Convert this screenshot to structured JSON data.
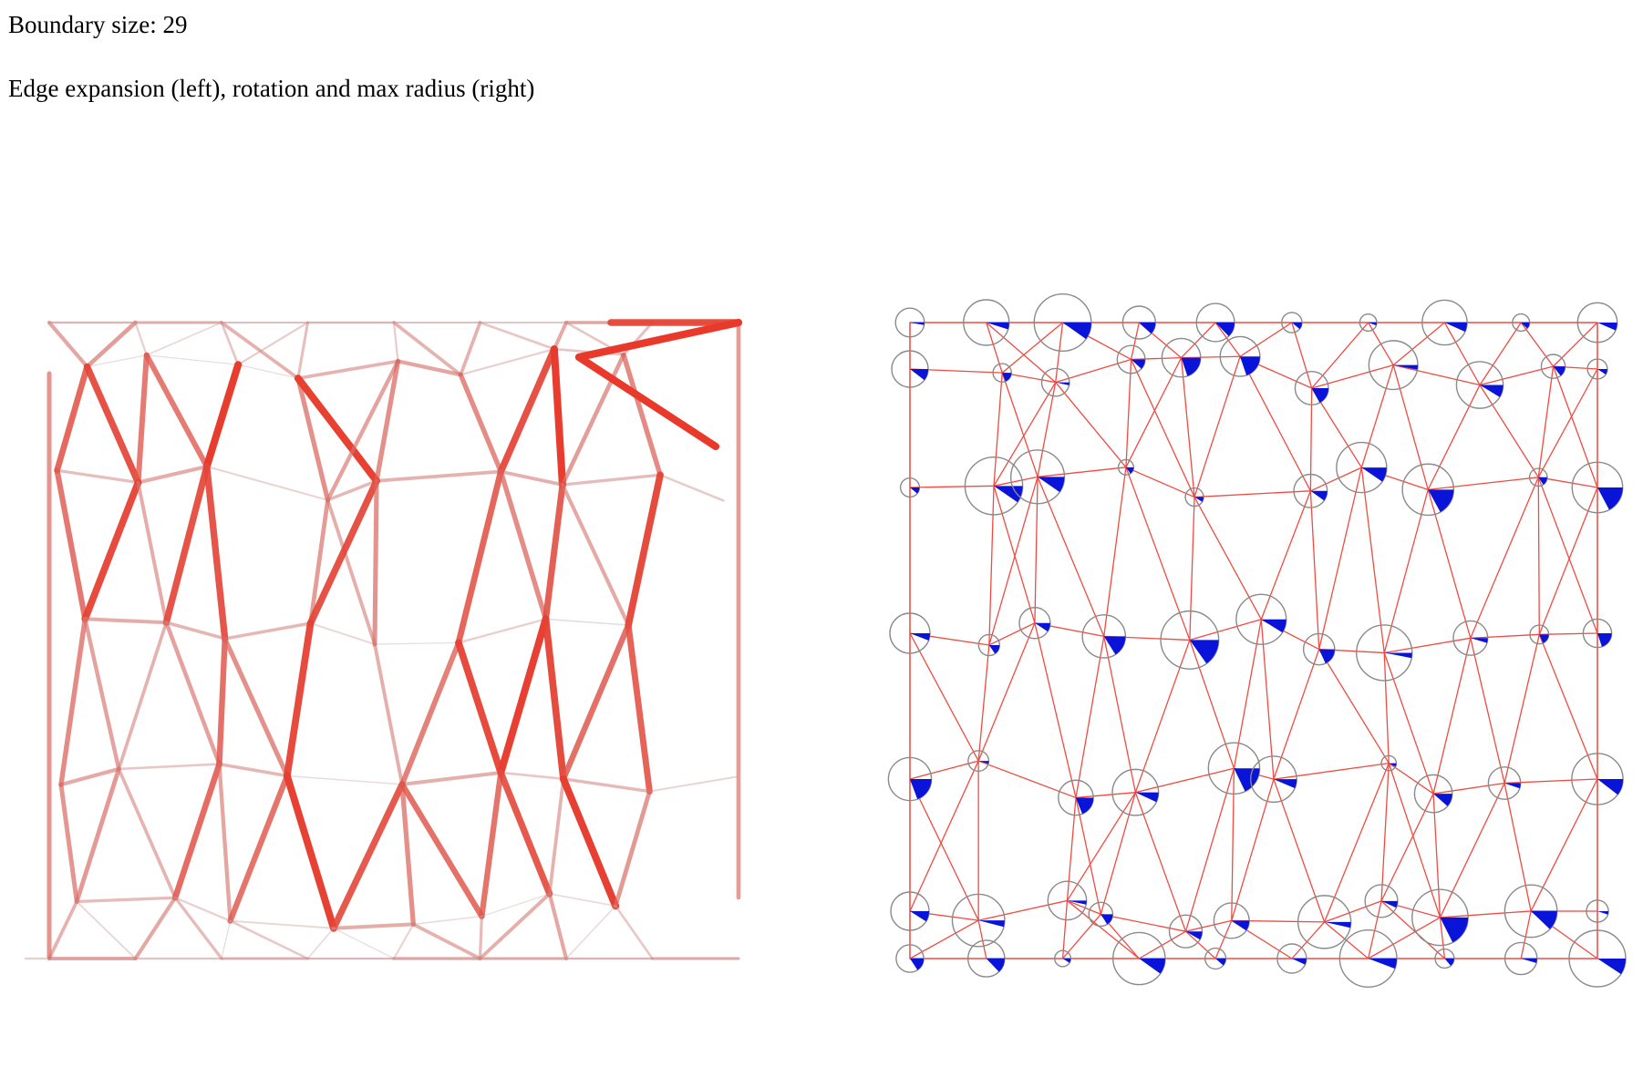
{
  "header": {
    "boundary_text": "Boundary size: 29",
    "caption": "Edge expansion (left), rotation and max radius (right)"
  },
  "colors": {
    "edge_low": "#c7a3a3",
    "edge_high": "#e8392a",
    "right_edge": "#ef4b42",
    "circle": "#8a8a8a",
    "sector": "#0a14d8"
  }
}
